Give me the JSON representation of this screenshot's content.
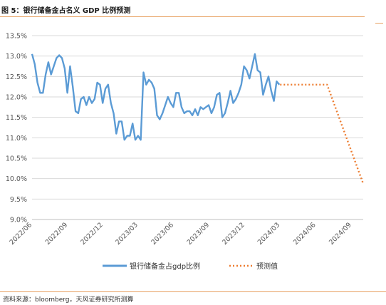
{
  "header": {
    "title": "图 5：银行储备金占名义 GDP 比例预测"
  },
  "footer": {
    "source": "资料来源：bloomberg，天风证券研究所测算"
  },
  "colors": {
    "actual": "#5b9bd5",
    "forecast": "#ed7d31",
    "accent": "#e8a060"
  },
  "chart_data": {
    "type": "line",
    "title": "",
    "xlabel": "",
    "ylabel": "",
    "ylim": [
      9.0,
      13.5
    ],
    "y_ticks": [
      "9.0%",
      "9.5%",
      "10.0%",
      "10.5%",
      "11.0%",
      "11.5%",
      "12.0%",
      "12.5%",
      "13.0%",
      "13.5%"
    ],
    "x_ticks": [
      "2022/06",
      "2022/09",
      "2022/12",
      "2023/03",
      "2023/06",
      "2023/09",
      "2023/12",
      "2024/03",
      "2024/06",
      "2024/09"
    ],
    "grid": "horizontal",
    "legend_position": "bottom",
    "series": [
      {
        "name": "银行储备金占gdp比例",
        "style": "solid",
        "points": [
          [
            "2022-06-01",
            13.05
          ],
          [
            "2022-06-08",
            12.8
          ],
          [
            "2022-06-15",
            12.35
          ],
          [
            "2022-06-22",
            12.1
          ],
          [
            "2022-06-29",
            12.1
          ],
          [
            "2022-07-06",
            12.55
          ],
          [
            "2022-07-13",
            12.85
          ],
          [
            "2022-07-20",
            12.55
          ],
          [
            "2022-07-27",
            12.75
          ],
          [
            "2022-08-03",
            12.95
          ],
          [
            "2022-08-10",
            13.02
          ],
          [
            "2022-08-17",
            12.95
          ],
          [
            "2022-08-24",
            12.7
          ],
          [
            "2022-08-31",
            12.1
          ],
          [
            "2022-09-07",
            12.75
          ],
          [
            "2022-09-14",
            12.25
          ],
          [
            "2022-09-21",
            11.65
          ],
          [
            "2022-09-28",
            11.6
          ],
          [
            "2022-10-05",
            11.95
          ],
          [
            "2022-10-12",
            12.0
          ],
          [
            "2022-10-19",
            11.8
          ],
          [
            "2022-10-26",
            12.0
          ],
          [
            "2022-11-02",
            11.85
          ],
          [
            "2022-11-09",
            11.95
          ],
          [
            "2022-11-16",
            12.35
          ],
          [
            "2022-11-23",
            12.3
          ],
          [
            "2022-11-30",
            11.85
          ],
          [
            "2022-12-07",
            12.2
          ],
          [
            "2022-12-14",
            12.3
          ],
          [
            "2022-12-21",
            11.85
          ],
          [
            "2022-12-28",
            11.6
          ],
          [
            "2023-01-04",
            11.1
          ],
          [
            "2023-01-11",
            11.4
          ],
          [
            "2023-01-18",
            11.4
          ],
          [
            "2023-01-25",
            10.95
          ],
          [
            "2023-02-01",
            11.05
          ],
          [
            "2023-02-08",
            11.05
          ],
          [
            "2023-02-15",
            11.35
          ],
          [
            "2023-02-22",
            10.95
          ],
          [
            "2023-03-01",
            11.05
          ],
          [
            "2023-03-08",
            10.95
          ],
          [
            "2023-03-15",
            12.6
          ],
          [
            "2023-03-22",
            12.3
          ],
          [
            "2023-03-29",
            12.42
          ],
          [
            "2023-04-05",
            12.35
          ],
          [
            "2023-04-12",
            12.2
          ],
          [
            "2023-04-19",
            11.55
          ],
          [
            "2023-04-26",
            11.45
          ],
          [
            "2023-05-03",
            11.6
          ],
          [
            "2023-05-10",
            11.8
          ],
          [
            "2023-05-17",
            12.0
          ],
          [
            "2023-05-24",
            11.85
          ],
          [
            "2023-05-31",
            11.75
          ],
          [
            "2023-06-07",
            12.1
          ],
          [
            "2023-06-14",
            12.1
          ],
          [
            "2023-06-21",
            11.75
          ],
          [
            "2023-06-28",
            11.6
          ],
          [
            "2023-07-05",
            11.65
          ],
          [
            "2023-07-12",
            11.65
          ],
          [
            "2023-07-19",
            11.55
          ],
          [
            "2023-07-26",
            11.7
          ],
          [
            "2023-08-02",
            11.55
          ],
          [
            "2023-08-09",
            11.75
          ],
          [
            "2023-08-16",
            11.7
          ],
          [
            "2023-08-23",
            11.75
          ],
          [
            "2023-08-30",
            11.8
          ],
          [
            "2023-09-06",
            11.6
          ],
          [
            "2023-09-13",
            11.75
          ],
          [
            "2023-09-20",
            12.05
          ],
          [
            "2023-09-27",
            12.1
          ],
          [
            "2023-10-04",
            11.5
          ],
          [
            "2023-10-11",
            11.6
          ],
          [
            "2023-10-18",
            11.85
          ],
          [
            "2023-10-25",
            12.15
          ],
          [
            "2023-11-01",
            11.85
          ],
          [
            "2023-11-08",
            11.95
          ],
          [
            "2023-11-15",
            12.1
          ],
          [
            "2023-11-22",
            12.3
          ],
          [
            "2023-11-29",
            12.75
          ],
          [
            "2023-12-06",
            12.65
          ],
          [
            "2023-12-13",
            12.45
          ],
          [
            "2023-12-20",
            12.75
          ],
          [
            "2023-12-27",
            13.05
          ],
          [
            "2024-01-03",
            12.65
          ],
          [
            "2024-01-10",
            12.6
          ],
          [
            "2024-01-17",
            12.05
          ],
          [
            "2024-01-24",
            12.3
          ],
          [
            "2024-01-31",
            12.5
          ],
          [
            "2024-02-07",
            12.15
          ],
          [
            "2024-02-14",
            11.9
          ],
          [
            "2024-02-21",
            12.38
          ],
          [
            "2024-02-28",
            12.3
          ]
        ]
      },
      {
        "name": "预测值",
        "style": "dotted",
        "points": [
          [
            "2024-03-01",
            12.3
          ],
          [
            "2024-06-30",
            12.3
          ],
          [
            "2024-09-30",
            9.9
          ]
        ]
      }
    ]
  }
}
